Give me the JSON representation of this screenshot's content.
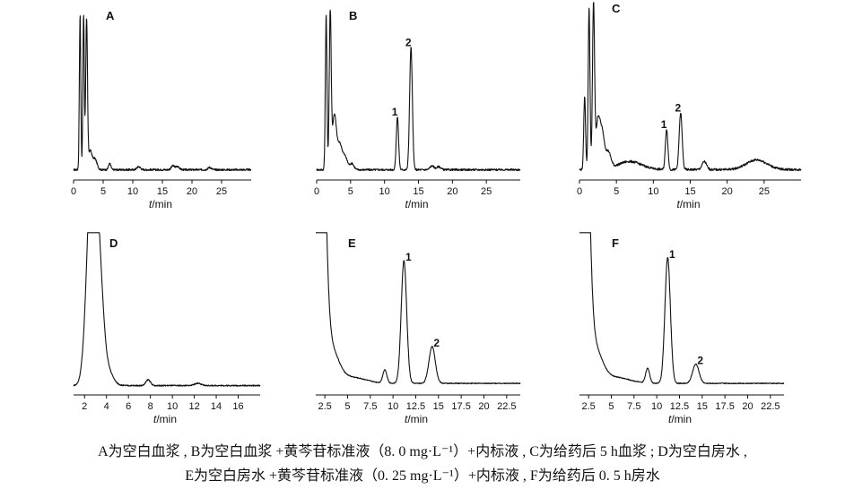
{
  "chart_data": [
    {
      "type": "line",
      "panel": "A",
      "xlabel": "t/min",
      "xlim": [
        0,
        30
      ],
      "xticks": [
        "0",
        "5",
        "10",
        "15",
        "20",
        "25"
      ],
      "xtick_values": [
        0,
        5,
        10,
        15,
        20,
        25
      ],
      "ylim": [
        0,
        100
      ],
      "baseline": 2,
      "noise": 1.2,
      "peaks": [
        {
          "t": 1.1,
          "h": 100,
          "w": 0.12
        },
        {
          "t": 1.7,
          "h": 100,
          "w": 0.12
        },
        {
          "t": 2.2,
          "h": 96,
          "w": 0.15
        },
        {
          "t": 2.8,
          "h": 12,
          "w": 0.3
        },
        {
          "t": 3.6,
          "h": 7,
          "w": 0.35
        },
        {
          "t": 6.1,
          "h": 4,
          "w": 0.2
        },
        {
          "t": 11.0,
          "h": 2,
          "w": 0.3
        },
        {
          "t": 16.8,
          "h": 2.5,
          "w": 0.3
        },
        {
          "t": 17.6,
          "h": 2,
          "w": 0.3
        },
        {
          "t": 23.0,
          "h": 1.5,
          "w": 0.3
        }
      ],
      "humps": [],
      "labels": []
    },
    {
      "type": "line",
      "panel": "B",
      "xlabel": "t/min",
      "xlim": [
        0,
        30
      ],
      "xticks": [
        "0",
        "5",
        "10",
        "15",
        "20",
        "25"
      ],
      "xtick_values": [
        0,
        5,
        10,
        15,
        20,
        25
      ],
      "ylim": [
        0,
        100
      ],
      "baseline": 2,
      "noise": 1.2,
      "peaks": [
        {
          "t": 1.4,
          "h": 100,
          "w": 0.12
        },
        {
          "t": 2.0,
          "h": 100,
          "w": 0.14
        },
        {
          "t": 2.6,
          "h": 35,
          "w": 0.3
        },
        {
          "t": 3.4,
          "h": 16,
          "w": 0.35
        },
        {
          "t": 4.2,
          "h": 8,
          "w": 0.35
        },
        {
          "t": 5.2,
          "h": 4,
          "w": 0.3
        },
        {
          "t": 11.9,
          "h": 34,
          "w": 0.17
        },
        {
          "t": 13.9,
          "h": 79,
          "w": 0.2
        },
        {
          "t": 17.0,
          "h": 2.5,
          "w": 0.3
        },
        {
          "t": 18.0,
          "h": 2,
          "w": 0.3
        }
      ],
      "humps": [],
      "labels": [
        {
          "text": "1",
          "t": 11.9,
          "h": 34
        },
        {
          "text": "2",
          "t": 13.9,
          "h": 79
        }
      ]
    },
    {
      "type": "line",
      "panel": "C",
      "xlabel": "t/min",
      "xlim": [
        0,
        30
      ],
      "xticks": [
        "0",
        "5",
        "10",
        "15",
        "20",
        "25"
      ],
      "xtick_values": [
        0,
        5,
        10,
        15,
        20,
        25
      ],
      "ylim": [
        0,
        100
      ],
      "baseline": 2,
      "noise": 1.4,
      "peaks": [
        {
          "t": 0.7,
          "h": 45,
          "w": 0.12
        },
        {
          "t": 1.3,
          "h": 100,
          "w": 0.12
        },
        {
          "t": 1.9,
          "h": 100,
          "w": 0.14
        },
        {
          "t": 2.5,
          "h": 30,
          "w": 0.3
        },
        {
          "t": 3.1,
          "h": 20,
          "w": 0.3
        },
        {
          "t": 3.9,
          "h": 10,
          "w": 0.35
        },
        {
          "t": 11.8,
          "h": 25,
          "w": 0.17
        },
        {
          "t": 13.7,
          "h": 35,
          "w": 0.2
        },
        {
          "t": 16.9,
          "h": 5,
          "w": 0.3
        }
      ],
      "humps": [
        {
          "t": 6.8,
          "h": 5,
          "w": 1.6
        },
        {
          "t": 24.0,
          "h": 6,
          "w": 1.4
        }
      ],
      "labels": [
        {
          "text": "1",
          "t": 11.8,
          "h": 25
        },
        {
          "text": "2",
          "t": 13.7,
          "h": 35
        }
      ]
    },
    {
      "type": "line",
      "panel": "D",
      "xlabel": "t/min",
      "xlim": [
        1,
        18
      ],
      "xticks": [
        "2",
        "4",
        "6",
        "8",
        "10",
        "12",
        "14",
        "16"
      ],
      "xtick_values": [
        2,
        4,
        6,
        8,
        10,
        12,
        14,
        16
      ],
      "ylim": [
        0,
        100
      ],
      "baseline": 1.5,
      "noise": 0.8,
      "peaks": [
        {
          "t": 2.7,
          "h": 160,
          "w": 0.45
        },
        {
          "t": 3.4,
          "h": 45,
          "w": 0.35
        },
        {
          "t": 4.0,
          "h": 12,
          "w": 0.5
        },
        {
          "t": 7.8,
          "h": 4,
          "w": 0.2
        },
        {
          "t": 12.3,
          "h": 1.5,
          "w": 0.3
        }
      ],
      "humps": [],
      "labels": []
    },
    {
      "type": "line",
      "panel": "E",
      "xlabel": "t/min",
      "xlim": [
        1.5,
        24
      ],
      "xticks": [
        "2.5",
        "5",
        "7.5",
        "10",
        "12.5",
        "15",
        "17.5",
        "20",
        "22.5"
      ],
      "xtick_values": [
        2.5,
        5,
        7.5,
        10,
        12.5,
        15,
        17.5,
        20,
        22.5
      ],
      "ylim": [
        0,
        100
      ],
      "baseline": 3,
      "noise": 0.6,
      "peaks": [
        {
          "t": 1.9,
          "h": 300,
          "w": 0.5
        },
        {
          "t": 3.0,
          "h": 25,
          "w": 0.9
        },
        {
          "t": 5.5,
          "h": 4,
          "w": 1.5
        },
        {
          "t": 9.1,
          "h": 9,
          "w": 0.22
        },
        {
          "t": 11.2,
          "h": 83,
          "w": 0.3
        },
        {
          "t": 14.3,
          "h": 25,
          "w": 0.35
        }
      ],
      "humps": [],
      "labels": [
        {
          "text": "1",
          "t": 11.2,
          "h": 83
        },
        {
          "text": "2",
          "t": 14.3,
          "h": 25
        }
      ]
    },
    {
      "type": "line",
      "panel": "F",
      "xlabel": "t/min",
      "xlim": [
        1.5,
        24
      ],
      "xticks": [
        "2.5",
        "5",
        "7.5",
        "10",
        "12.5",
        "15",
        "17.5",
        "20",
        "22.5"
      ],
      "xtick_values": [
        2.5,
        5,
        7.5,
        10,
        12.5,
        15,
        17.5,
        20,
        22.5
      ],
      "ylim": [
        0,
        100
      ],
      "baseline": 3,
      "noise": 0.6,
      "peaks": [
        {
          "t": 1.9,
          "h": 300,
          "w": 0.5
        },
        {
          "t": 3.0,
          "h": 25,
          "w": 0.9
        },
        {
          "t": 5.5,
          "h": 4,
          "w": 1.5
        },
        {
          "t": 9.0,
          "h": 10,
          "w": 0.22
        },
        {
          "t": 11.2,
          "h": 85,
          "w": 0.3
        },
        {
          "t": 14.3,
          "h": 13,
          "w": 0.35
        }
      ],
      "humps": [],
      "labels": [
        {
          "text": "1",
          "t": 11.2,
          "h": 85
        },
        {
          "text": "2",
          "t": 14.3,
          "h": 13
        }
      ]
    }
  ],
  "caption": {
    "line1": "A为空白血浆 , B为空白血浆  +黄芩苷标准液（8. 0 mg·L⁻¹）+内标液 , C为给药后  5 h血浆 ; D为空白房水 ,",
    "line2": "E为空白房水  +黄芩苷标准液（0. 25 mg·L⁻¹）+内标液 , F为给药后  0. 5 h房水"
  }
}
